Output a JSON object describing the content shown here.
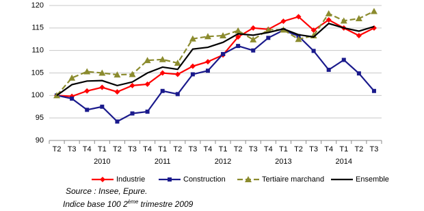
{
  "chart_data": {
    "type": "line",
    "categories": [
      "T2",
      "T3",
      "T4",
      "T1",
      "T2",
      "T3",
      "T4",
      "T1",
      "T2",
      "T3",
      "T4",
      "T1",
      "T2",
      "T3",
      "T4",
      "T1",
      "T2",
      "T3",
      "T4",
      "T1",
      "T2",
      "T3"
    ],
    "year_labels": [
      null,
      null,
      null,
      "2010",
      null,
      null,
      null,
      "2011",
      null,
      null,
      null,
      "2012",
      null,
      null,
      null,
      "2013",
      null,
      null,
      null,
      "2014",
      null,
      null
    ],
    "series": [
      {
        "name": "Industrie",
        "color": "#ff0000",
        "marker": "diamond",
        "dashed": false,
        "values": [
          100,
          99.8,
          101,
          101.8,
          100.8,
          102.2,
          102.5,
          105,
          104.7,
          106.5,
          107.5,
          109,
          113,
          115,
          114.7,
          116.5,
          117.5,
          114.5,
          116.8,
          115,
          113.3,
          115
        ]
      },
      {
        "name": "Construction",
        "color": "#1a1a8c",
        "marker": "square",
        "dashed": false,
        "values": [
          100,
          99.3,
          96.8,
          97.5,
          94.2,
          96,
          96.4,
          101,
          100.3,
          104.7,
          105.5,
          109.2,
          111,
          110,
          112.8,
          114.5,
          113.2,
          109.9,
          105.7,
          107.9,
          104.9,
          101
        ]
      },
      {
        "name": "Tertiaire marchand",
        "color": "#8b8b2e",
        "marker": "triangle",
        "dashed": true,
        "values": [
          100,
          103.9,
          105.3,
          105,
          104.6,
          104.7,
          107.8,
          108,
          107.2,
          112.6,
          113.1,
          113.3,
          114.4,
          112.4,
          114.6,
          114.6,
          112.5,
          113.3,
          118.2,
          116.6,
          117.1,
          118.7
        ]
      },
      {
        "name": "Ensemble",
        "color": "#000000",
        "marker": "none",
        "dashed": false,
        "values": [
          100,
          102.4,
          103.2,
          103.3,
          102.2,
          103,
          105,
          106.3,
          105.8,
          110.3,
          110.7,
          111.8,
          113.7,
          113.4,
          114,
          114.8,
          113.5,
          113,
          116,
          115,
          114.3,
          115.3
        ]
      }
    ],
    "ylim": [
      90,
      120
    ],
    "yticks": [
      90,
      95,
      100,
      105,
      110,
      115,
      120
    ],
    "grid": true,
    "legend": "bottom",
    "source": "Source : Insee, Epure.",
    "note": [
      "Indice base 100 2",
      "ème",
      " trimestre 2009"
    ]
  }
}
